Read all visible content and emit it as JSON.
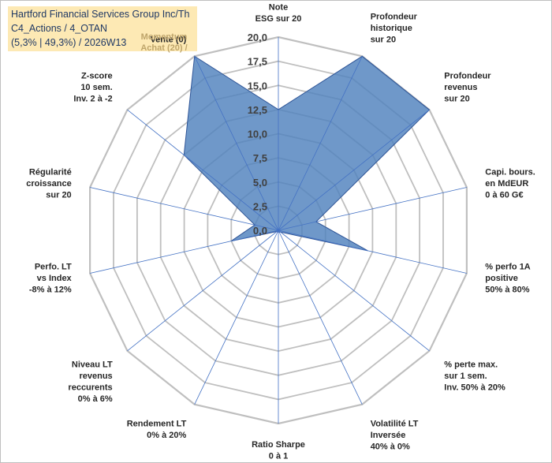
{
  "title": {
    "line1": "Hartford Financial Services  Group Inc/Th",
    "line2": "C4_Actions / 4_OTAN",
    "line3": "(5,3% | 49,3%) / 2026W13"
  },
  "chart_data": {
    "type": "radar",
    "rmin": 0,
    "rmax": 20,
    "ticks": [
      "0,0",
      "2,5",
      "5,0",
      "7,5",
      "10,0",
      "12,5",
      "15,0",
      "17,5",
      "20,0"
    ],
    "axes": [
      {
        "lines": [
          "Note",
          "ESG sur 20"
        ],
        "value": 12.5
      },
      {
        "lines": [
          "Profondeur",
          "historique",
          "sur 20"
        ],
        "value": 20
      },
      {
        "lines": [
          "Profondeur",
          "revenus",
          "sur 20"
        ],
        "value": 20
      },
      {
        "lines": [
          "Capi. bours.",
          "en MdEUR",
          "0 à 60 G€"
        ],
        "value": 4
      },
      {
        "lines": [
          "% perfo 1A",
          "positive",
          "50% à 80%"
        ],
        "value": 9.5
      },
      {
        "lines": [
          "% perte max.",
          "sur 1 sem.",
          "Inv. 50% à 20%"
        ],
        "value": 0.3
      },
      {
        "lines": [
          "Volatilité LT",
          "Inversée",
          "40% à 0%"
        ],
        "value": 0.2
      },
      {
        "lines": [
          "Ratio Sharpe",
          "0 à 1"
        ],
        "value": 0.2
      },
      {
        "lines": [
          "Rendement LT",
          "0% à 20%"
        ],
        "value": 0.2
      },
      {
        "lines": [
          "Niveau LT",
          "revenus",
          "reccurents",
          "0% à 6%"
        ],
        "value": 0.2
      },
      {
        "lines": [
          "Perfo. LT",
          "vs Index",
          "-8% à 12%"
        ],
        "value": 5
      },
      {
        "lines": [
          "Régularité",
          "croissance",
          "sur 20"
        ],
        "value": 2.5
      },
      {
        "lines": [
          "Z-score",
          "10 sem.",
          "Inv. 2 à -2"
        ],
        "value": 12.5
      },
      {
        "lines": [
          "Vente (0)"
        ],
        "value": 20
      }
    ],
    "momentum_lines": [
      "Momentum",
      "Achat (20) /"
    ],
    "fill_color": "#4f81bd",
    "line_color": "#2f5597",
    "grid_color": "#bfbfbf"
  }
}
